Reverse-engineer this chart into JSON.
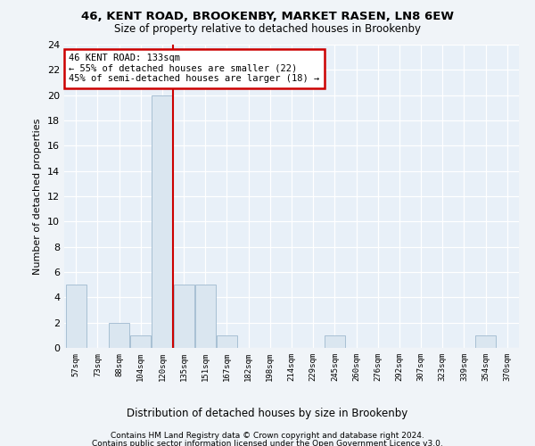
{
  "title": "46, KENT ROAD, BROOKENBY, MARKET RASEN, LN8 6EW",
  "subtitle": "Size of property relative to detached houses in Brookenby",
  "xlabel": "Distribution of detached houses by size in Brookenby",
  "ylabel": "Number of detached properties",
  "bin_labels": [
    "57sqm",
    "73sqm",
    "88sqm",
    "104sqm",
    "120sqm",
    "135sqm",
    "151sqm",
    "167sqm",
    "182sqm",
    "198sqm",
    "214sqm",
    "229sqm",
    "245sqm",
    "260sqm",
    "276sqm",
    "292sqm",
    "307sqm",
    "323sqm",
    "339sqm",
    "354sqm",
    "370sqm"
  ],
  "bar_values": [
    5,
    0,
    2,
    1,
    20,
    5,
    5,
    1,
    0,
    0,
    0,
    0,
    1,
    0,
    0,
    0,
    0,
    0,
    0,
    1,
    0
  ],
  "bar_color": "#dae6f0",
  "bar_edge_color": "#a8c0d4",
  "red_line_x": 4.5,
  "annotation_line1": "46 KENT ROAD: 133sqm",
  "annotation_line2": "← 55% of detached houses are smaller (22)",
  "annotation_line3": "45% of semi-detached houses are larger (18) →",
  "annotation_box_color": "#ffffff",
  "annotation_box_edge": "#cc0000",
  "red_line_color": "#cc0000",
  "ylim": [
    0,
    24
  ],
  "yticks": [
    0,
    2,
    4,
    6,
    8,
    10,
    12,
    14,
    16,
    18,
    20,
    22,
    24
  ],
  "footer_line1": "Contains HM Land Registry data © Crown copyright and database right 2024.",
  "footer_line2": "Contains public sector information licensed under the Open Government Licence v3.0.",
  "bg_color": "#f0f4f8",
  "plot_bg_color": "#e8f0f8"
}
